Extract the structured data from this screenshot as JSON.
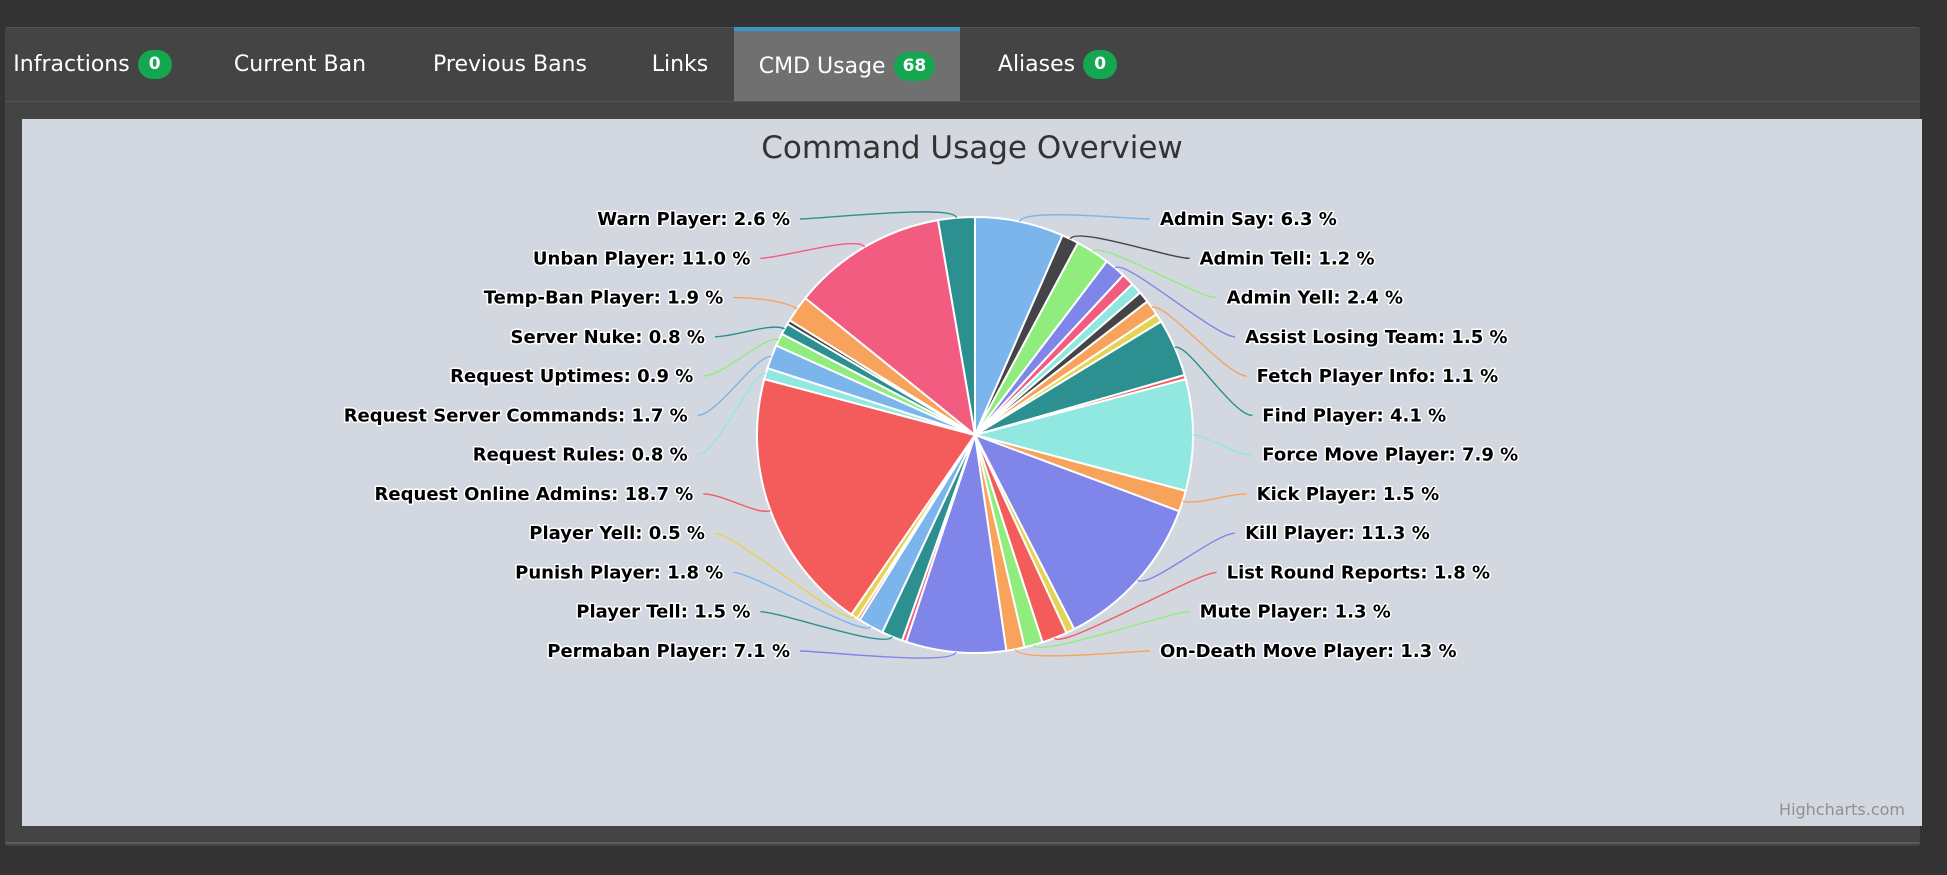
{
  "tabs": [
    {
      "label": "Infractions",
      "badge": "0",
      "active": false
    },
    {
      "label": "Current Ban",
      "badge": null,
      "active": false
    },
    {
      "label": "Previous Bans",
      "badge": null,
      "active": false
    },
    {
      "label": "Links",
      "badge": null,
      "active": false
    },
    {
      "label": "CMD Usage",
      "badge": "68",
      "active": true
    },
    {
      "label": "Aliases",
      "badge": "0",
      "active": false
    }
  ],
  "credits": "Highcharts.com",
  "colors": {
    "tab_active_bg": "#707070",
    "tab_active_border": "#3b95c8",
    "badge_bg": "#15a74f",
    "chart_bg": "#d3d8e0"
  },
  "chart_data": {
    "type": "pie",
    "title": "Command Usage Overview",
    "start_category": "Admin Say",
    "direction": "clockwise",
    "slices": [
      {
        "name": "Admin Say",
        "value": 6.3,
        "label": "Admin Say: 6.3 %",
        "color": "#7cb5ec"
      },
      {
        "name": "Admin Tell",
        "value": 1.2,
        "label": "Admin Tell: 1.2 %",
        "color": "#434348"
      },
      {
        "name": "Admin Yell",
        "value": 2.4,
        "label": "Admin Yell: 2.4 %",
        "color": "#90ed7d"
      },
      {
        "name": "Assist Losing Team",
        "value": 1.5,
        "label": "Assist Losing Team: 1.5 %",
        "color": "#8085e9"
      },
      {
        "name": "Unlabeled A",
        "value": 0.9,
        "label": "",
        "color": "#f15c80"
      },
      {
        "name": "Unlabeled B",
        "value": 0.8,
        "label": "",
        "color": "#90e7e0"
      },
      {
        "name": "Unlabeled C",
        "value": 0.8,
        "label": "",
        "color": "#434348"
      },
      {
        "name": "Fetch Player Info",
        "value": 1.1,
        "label": "Fetch Player Info: 1.1 %",
        "color": "#f7a35c"
      },
      {
        "name": "Unlabeled D",
        "value": 0.6,
        "label": "",
        "color": "#e4d354"
      },
      {
        "name": "Find Player",
        "value": 4.1,
        "label": "Find Player: 4.1 %",
        "color": "#2b908f"
      },
      {
        "name": "Unlabeled E",
        "value": 0.3,
        "label": "",
        "color": "#f45b5b"
      },
      {
        "name": "Force Move Player",
        "value": 7.9,
        "label": "Force Move Player: 7.9 %",
        "color": "#91e8e1"
      },
      {
        "name": "Kick Player",
        "value": 1.5,
        "label": "Kick Player: 1.5 %",
        "color": "#f7a35c"
      },
      {
        "name": "Kill Player",
        "value": 11.3,
        "label": "Kill Player: 11.3 %",
        "color": "#8085e9"
      },
      {
        "name": "Unlabeled F",
        "value": 0.6,
        "label": "",
        "color": "#e4d354"
      },
      {
        "name": "List Round Reports",
        "value": 1.8,
        "label": "List Round Reports: 1.8 %",
        "color": "#f45b5b"
      },
      {
        "name": "Mute Player",
        "value": 1.3,
        "label": "Mute Player: 1.3 %",
        "color": "#90ed7d"
      },
      {
        "name": "On-Death Move Player",
        "value": 1.3,
        "label": "On-Death Move Player: 1.3 %",
        "color": "#f7a35c"
      },
      {
        "name": "Permaban Player",
        "value": 7.1,
        "label": "Permaban Player: 7.1 %",
        "color": "#8085e9"
      },
      {
        "name": "Unlabeled G",
        "value": 0.3,
        "label": "",
        "color": "#f15c80"
      },
      {
        "name": "Player Tell",
        "value": 1.5,
        "label": "Player Tell: 1.5 %",
        "color": "#2b908f"
      },
      {
        "name": "Punish Player",
        "value": 1.8,
        "label": "Punish Player: 1.8 %",
        "color": "#7cb5ec"
      },
      {
        "name": "Unlabeled H",
        "value": 0.2,
        "label": "",
        "color": "#f45b5b"
      },
      {
        "name": "Player Yell",
        "value": 0.5,
        "label": "Player Yell: 0.5 %",
        "color": "#e4d354"
      },
      {
        "name": "Request Online Admins",
        "value": 18.7,
        "label": "Request Online Admins: 18.7 %",
        "color": "#f45b5b"
      },
      {
        "name": "Request Rules",
        "value": 0.8,
        "label": "Request Rules: 0.8 %",
        "color": "#91e8e1"
      },
      {
        "name": "Request Server Commands",
        "value": 1.7,
        "label": "Request Server Commands: 1.7 %",
        "color": "#7cb5ec"
      },
      {
        "name": "Request Uptimes",
        "value": 0.9,
        "label": "Request Uptimes: 0.9 %",
        "color": "#90ed7d"
      },
      {
        "name": "Server Nuke",
        "value": 0.8,
        "label": "Server Nuke: 0.8 %",
        "color": "#2b908f"
      },
      {
        "name": "Unlabeled I",
        "value": 0.3,
        "label": "",
        "color": "#434348"
      },
      {
        "name": "Temp-Ban Player",
        "value": 1.9,
        "label": "Temp-Ban Player: 1.9 %",
        "color": "#f7a35c"
      },
      {
        "name": "Unban Player",
        "value": 11.0,
        "label": "Unban Player: 11.0 %",
        "color": "#f15c80"
      },
      {
        "name": "Warn Player",
        "value": 2.6,
        "label": "Warn Player: 2.6 %",
        "color": "#2b908f"
      }
    ]
  }
}
